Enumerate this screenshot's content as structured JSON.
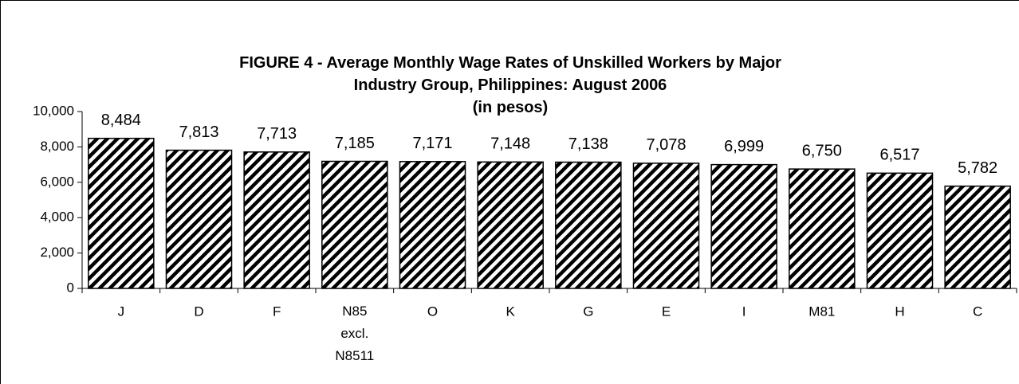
{
  "chart_data": {
    "type": "bar",
    "title": "FIGURE 4 - Average Monthly Wage Rates of Unskilled Workers by Major\nIndustry Group, Philippines:  August 2006\n(in pesos)",
    "categories": [
      "J",
      "D",
      "F",
      "N85\nexcl.\nN8511",
      "O",
      "K",
      "G",
      "E",
      "I",
      "M81",
      "H",
      "C"
    ],
    "values": [
      8484,
      7813,
      7713,
      7185,
      7171,
      7148,
      7138,
      7078,
      6999,
      6750,
      6517,
      5782
    ],
    "value_labels": [
      "8,484",
      "7,813",
      "7,713",
      "7,185",
      "7,171",
      "7,148",
      "7,138",
      "7,078",
      "6,999",
      "6,750",
      "6,517",
      "5,782"
    ],
    "color": "#000000",
    "ylim": [
      0,
      10000
    ],
    "yticks": [
      0,
      {
        "value": 2000,
        "label": "2,000"
      },
      {
        "value": 4000,
        "label": "4,000"
      },
      {
        "value": 6000,
        "label": "6,000"
      },
      {
        "value": 8000,
        "label": "8,000"
      },
      {
        "value": 10000,
        "label": "10,000"
      }
    ],
    "grid": false
  }
}
